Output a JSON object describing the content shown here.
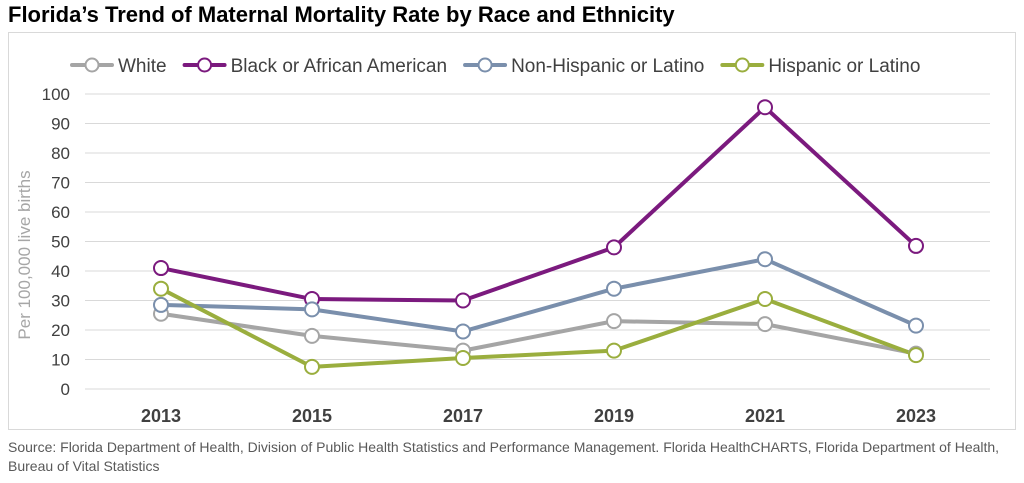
{
  "title": "Florida’s Trend of Maternal Mortality Rate by Race and Ethnicity",
  "source": "Source: Florida Department of Health, Division of Public Health Statistics and Performance Management. Florida HealthCHARTS, Florida Department of Health, Bureau of Vital Statistics",
  "chart_data": {
    "type": "line",
    "title": "Florida’s Trend of Maternal Mortality Rate by Race and Ethnicity",
    "xlabel": "",
    "ylabel": "Per 100,000 live births",
    "categories": [
      "2013",
      "2015",
      "2017",
      "2019",
      "2021",
      "2023"
    ],
    "ylim": [
      0,
      100
    ],
    "yticks": [
      0,
      10,
      20,
      30,
      40,
      50,
      60,
      70,
      80,
      90,
      100
    ],
    "grid": true,
    "legend": "top",
    "series": [
      {
        "name": "White",
        "color": "#a5a5a5",
        "values": [
          25.5,
          18,
          13,
          23,
          22,
          12
        ]
      },
      {
        "name": "Black or African American",
        "color": "#7b1a7e",
        "values": [
          41,
          30.5,
          30,
          48,
          95.5,
          48.5
        ]
      },
      {
        "name": "Non-Hispanic or Latino",
        "color": "#7a8fac",
        "values": [
          28.5,
          27,
          19.5,
          34,
          44,
          21.5
        ]
      },
      {
        "name": "Hispanic or Latino",
        "color": "#9aae3e",
        "values": [
          34,
          7.5,
          10.5,
          13,
          30.5,
          11.5
        ]
      }
    ]
  }
}
